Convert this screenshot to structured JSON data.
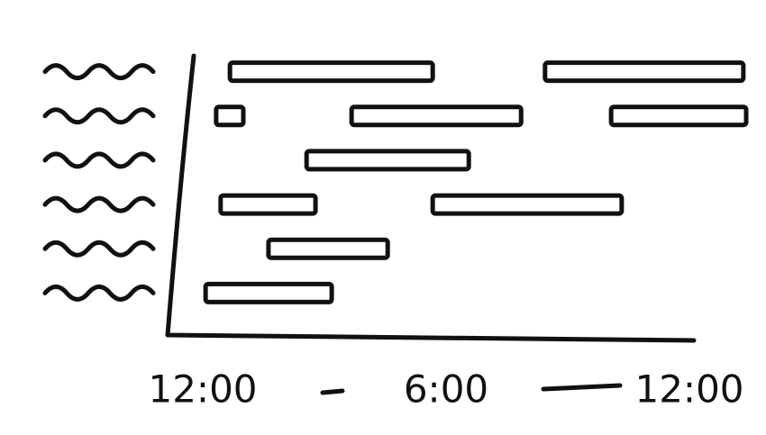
{
  "chart_data": {
    "type": "timeline",
    "categories": [
      null,
      null,
      null,
      null,
      null,
      null
    ],
    "tasks": [
      [
        [
          0.67,
          5.67
        ],
        [
          8.44,
          13.33
        ]
      ],
      [
        [
          0.33,
          1.0
        ],
        [
          3.67,
          7.85
        ],
        [
          10.07,
          13.4
        ]
      ],
      [
        [
          2.56,
          6.56
        ]
      ],
      [
        [
          0.44,
          2.78
        ],
        [
          5.67,
          10.33
        ]
      ],
      [
        [
          1.62,
          4.56
        ]
      ],
      [
        [
          0.07,
          3.18
        ]
      ]
    ],
    "color": "#ffffff",
    "xlim": [
      -1,
      13.5
    ],
    "xticks": [
      {
        "value": 0,
        "label": "12:00"
      },
      {
        "value": 6,
        "label": "6:00"
      },
      {
        "value": 12,
        "label": "12:00"
      }
    ]
  }
}
